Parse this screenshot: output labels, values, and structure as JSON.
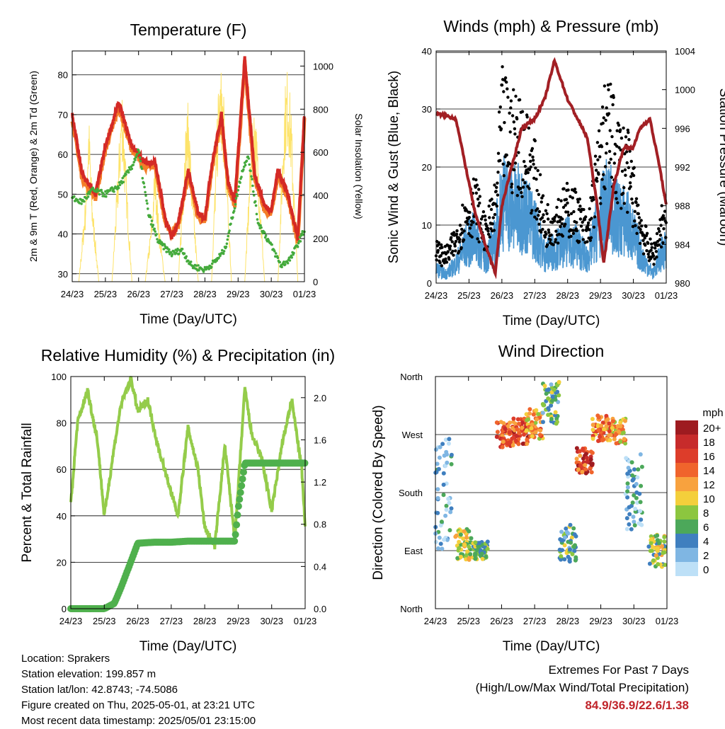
{
  "x_ticks": [
    "24/23",
    "25/23",
    "26/23",
    "27/23",
    "28/23",
    "29/23",
    "30/23",
    "01/23"
  ],
  "info": {
    "location": "Location: Sprakers",
    "elevation": "Station elevation: 199.857 m",
    "latlon": "Station lat/lon: 42.8743; -74.5086",
    "created": "Figure created on Thu, 2025-05-01, at 23:21 UTC",
    "recent": "Most recent data timestamp: 2025/05/01 23:15:00"
  },
  "extremes": {
    "title": "Extremes For Past 7 Days",
    "subtitle": "(High/Low/Max Wind/Total Precipitation)",
    "values": "84.9/36.9/22.6/1.38"
  },
  "colors": {
    "temp2m": "#d42a26",
    "temp9m": "#f47d28",
    "dewpoint": "#44aa3c",
    "solar": "#fde36a",
    "wind": "#4b97d1",
    "gust": "#000000",
    "pressure": "#a21f24",
    "rh": "#94cc4a",
    "rain": "#4fb04d"
  },
  "chart_data": [
    {
      "type": "line",
      "title": "Temperature (F)",
      "xlabel": "Time (Day/UTC)",
      "ylabel": "2m & 9m T (Red, Orange) & 2m Td (Green)",
      "ylabel_right": "Solar Insolation (Yellow)",
      "x_ticks": [
        "24/23",
        "25/23",
        "26/23",
        "27/23",
        "28/23",
        "29/23",
        "30/23",
        "01/23"
      ],
      "y_ticks": [
        30,
        40,
        50,
        60,
        70,
        80
      ],
      "y2_ticks": [
        0,
        200,
        400,
        600,
        800,
        1000
      ],
      "ylim": [
        28,
        86
      ],
      "y2lim": [
        0,
        1070
      ],
      "series": [
        {
          "name": "2m T",
          "color": "#d42a26",
          "x": [
            0,
            0.3,
            0.7,
            1.0,
            1.4,
            1.8,
            2.2,
            2.5,
            2.8,
            3.0,
            3.2,
            3.5,
            3.8,
            4.0,
            4.2,
            4.5,
            4.7,
            4.9,
            5.2,
            5.5,
            5.8,
            6.0,
            6.2,
            6.5,
            6.8,
            7.0
          ],
          "values": [
            70,
            55,
            50,
            62,
            73,
            62,
            58,
            58,
            44,
            39,
            43,
            56,
            45,
            44,
            57,
            70,
            53,
            48,
            84,
            55,
            47,
            46,
            56,
            50,
            39,
            70
          ]
        },
        {
          "name": "9m T",
          "color": "#f47d28",
          "x": [
            0,
            0.3,
            0.7,
            1.0,
            1.4,
            1.8,
            2.2,
            2.5,
            2.8,
            3.0,
            3.2,
            3.5,
            3.8,
            4.0,
            4.2,
            4.5,
            4.7,
            4.9,
            5.2,
            5.5,
            5.8,
            6.0,
            6.2,
            6.5,
            6.8,
            7.0
          ],
          "values": [
            69,
            54,
            49,
            61,
            72,
            61,
            57,
            57,
            43,
            40,
            42,
            55,
            44,
            43,
            56,
            69,
            52,
            47,
            83,
            54,
            46,
            45,
            55,
            49,
            38,
            69
          ]
        },
        {
          "name": "2m Td",
          "color": "#44aa3c",
          "x": [
            0,
            0.3,
            0.6,
            1.0,
            1.4,
            1.8,
            2.0,
            2.3,
            2.6,
            3.0,
            3.3,
            3.6,
            4.0,
            4.3,
            4.6,
            4.9,
            5.1,
            5.3,
            5.6,
            6.0,
            6.3,
            6.6,
            7.0
          ],
          "values": [
            49,
            48,
            51,
            50,
            52,
            57,
            61,
            45,
            38,
            35,
            36,
            32,
            31,
            33,
            36,
            47,
            55,
            60,
            43,
            37,
            32,
            34,
            41
          ]
        },
        {
          "name": "Solar",
          "color": "#fde36a",
          "x": [
            0.2,
            0.4,
            0.5,
            0.6,
            0.8,
            1.2,
            1.4,
            1.5,
            1.6,
            1.8,
            2.2,
            2.4,
            2.5,
            2.6,
            2.8,
            3.2,
            3.4,
            3.5,
            3.6,
            3.8,
            4.2,
            4.4,
            4.5,
            4.6,
            4.8,
            5.2,
            5.4,
            5.5,
            5.6,
            5.8,
            6.2,
            6.4,
            6.5,
            6.6,
            6.8
          ],
          "values": [
            0,
            400,
            800,
            400,
            0,
            0,
            600,
            950,
            600,
            0,
            0,
            300,
            600,
            300,
            0,
            0,
            700,
            850,
            500,
            0,
            0,
            900,
            1000,
            800,
            0,
            0,
            700,
            850,
            600,
            0,
            0,
            900,
            1020,
            800,
            0
          ]
        }
      ]
    },
    {
      "type": "line",
      "title": "Winds (mph) & Pressure (mb)",
      "xlabel": "Time (Day/UTC)",
      "ylabel": "Sonic Wind & Gust (Blue, Black)",
      "ylabel_right": "Station Pressure (Maroon)",
      "x_ticks": [
        "24/23",
        "25/23",
        "26/23",
        "27/23",
        "28/23",
        "29/23",
        "30/23",
        "01/23"
      ],
      "y_ticks": [
        0,
        10,
        20,
        30,
        40
      ],
      "y2_ticks": [
        980,
        984,
        988,
        992,
        996,
        1000,
        1004
      ],
      "ylim": [
        0,
        40
      ],
      "y2lim": [
        980,
        1004
      ],
      "series": [
        {
          "name": "Wind",
          "color": "#4b97d1",
          "x": [
            0,
            0.3,
            0.6,
            0.9,
            1.2,
            1.5,
            1.8,
            2.0,
            2.3,
            2.6,
            3.0,
            3.3,
            3.6,
            4.0,
            4.3,
            4.6,
            4.9,
            5.2,
            5.5,
            5.8,
            6.0,
            6.3,
            6.6,
            6.9,
            7.0
          ],
          "values": [
            3,
            2,
            4,
            8,
            10,
            5,
            9,
            18,
            16,
            16,
            12,
            6,
            7,
            9,
            8,
            5,
            12,
            17,
            14,
            13,
            10,
            5,
            2,
            7,
            8
          ]
        },
        {
          "name": "Gust",
          "color": "#000000",
          "x": [
            0,
            0.3,
            0.6,
            0.9,
            1.2,
            1.5,
            1.8,
            2.0,
            2.3,
            2.6,
            3.0,
            3.3,
            3.6,
            4.0,
            4.3,
            4.6,
            4.9,
            5.2,
            5.5,
            5.8,
            6.0,
            6.3,
            6.6,
            6.9,
            7.0
          ],
          "values": [
            6,
            5,
            8,
            13,
            15,
            9,
            14,
            30,
            27,
            27,
            20,
            11,
            12,
            14,
            13,
            9,
            20,
            30,
            24,
            22,
            17,
            9,
            5,
            12,
            13
          ]
        },
        {
          "name": "Pressure",
          "color": "#a21f24",
          "x": [
            0,
            0.3,
            0.6,
            0.9,
            1.2,
            1.5,
            1.8,
            2.0,
            2.3,
            2.6,
            3.0,
            3.3,
            3.6,
            4.0,
            4.3,
            4.6,
            4.9,
            5.1,
            5.4,
            5.7,
            6.0,
            6.2,
            6.5,
            6.8,
            7.0
          ],
          "values": [
            997.5,
            997.3,
            997,
            992,
            987,
            984,
            981,
            988,
            992,
            996,
            997,
            999,
            1003,
            999,
            997,
            995,
            988,
            982,
            990,
            994,
            994,
            996,
            997,
            992,
            988
          ]
        }
      ]
    },
    {
      "type": "line",
      "title": "Relative Humidity (%) & Precipitation (in)",
      "xlabel": "Time (Day/UTC)",
      "ylabel": "Percent & Total Rainfall",
      "x_ticks": [
        "24/23",
        "25/23",
        "26/23",
        "27/23",
        "28/23",
        "29/23",
        "30/23",
        "01/23"
      ],
      "y_ticks": [
        0,
        20,
        40,
        60,
        80,
        100
      ],
      "y2_ticks": [
        "0.0",
        "0.4",
        "0.8",
        "1.2",
        "1.6",
        "2.0"
      ],
      "ylim": [
        0,
        100
      ],
      "y2lim": [
        0,
        2.2
      ],
      "series": [
        {
          "name": "RH",
          "color": "#94cc4a",
          "x": [
            0,
            0.2,
            0.5,
            0.8,
            1.0,
            1.3,
            1.5,
            1.8,
            2.0,
            2.3,
            2.6,
            2.9,
            3.2,
            3.5,
            3.8,
            4.0,
            4.3,
            4.6,
            4.9,
            5.2,
            5.4,
            5.7,
            6.0,
            6.3,
            6.6,
            6.9,
            7.0
          ],
          "values": [
            45,
            80,
            94,
            72,
            40,
            70,
            88,
            99,
            85,
            90,
            70,
            55,
            40,
            78,
            60,
            35,
            27,
            70,
            30,
            95,
            75,
            65,
            42,
            70,
            90,
            60,
            35
          ]
        },
        {
          "name": "Rainfall",
          "color": "#4fb04d",
          "x": [
            0,
            0.5,
            1.0,
            1.3,
            1.5,
            1.8,
            2.0,
            2.5,
            3.0,
            3.5,
            4.0,
            4.5,
            4.9,
            5.0,
            5.2,
            5.5,
            6.0,
            6.5,
            7.0
          ],
          "values": [
            0,
            0,
            0,
            0.05,
            0.2,
            0.45,
            0.62,
            0.63,
            0.63,
            0.64,
            0.64,
            0.64,
            0.64,
            0.95,
            1.38,
            1.38,
            1.38,
            1.38,
            1.38
          ]
        }
      ]
    },
    {
      "type": "scatter",
      "title": "Wind Direction",
      "xlabel": "Time (Day/UTC)",
      "ylabel": "Direction (Colored By Speed)",
      "x_ticks": [
        "24/23",
        "25/23",
        "26/23",
        "27/23",
        "28/23",
        "29/23",
        "30/23",
        "01/23"
      ],
      "y_ticks": [
        "North",
        "East",
        "South",
        "West",
        "North"
      ],
      "legend_title": "mph",
      "legend_labels": [
        "20+",
        "18",
        "16",
        "14",
        "12",
        "10",
        "8",
        "6",
        "4",
        "2",
        "0"
      ],
      "legend_colors": [
        "#9e1b20",
        "#c72b2b",
        "#dd3d2a",
        "#f0642c",
        "#f8a23e",
        "#f4cf3b",
        "#8cc63f",
        "#4ca85a",
        "#3f7fbf",
        "#7fb6e3",
        "#bde0f7"
      ],
      "legend_placement": "right",
      "clusters": [
        {
          "x": 0.25,
          "dir": 180,
          "spread": 90,
          "speed": 3
        },
        {
          "x": 0.85,
          "dir": 100,
          "spread": 25,
          "speed": 9
        },
        {
          "x": 1.35,
          "dir": 90,
          "spread": 15,
          "speed": 7
        },
        {
          "x": 2.1,
          "dir": 270,
          "spread": 20,
          "speed": 15
        },
        {
          "x": 2.6,
          "dir": 275,
          "spread": 20,
          "speed": 16
        },
        {
          "x": 3.0,
          "dir": 285,
          "spread": 25,
          "speed": 12
        },
        {
          "x": 3.5,
          "dir": 320,
          "spread": 35,
          "speed": 6
        },
        {
          "x": 4.0,
          "dir": 100,
          "spread": 30,
          "speed": 6
        },
        {
          "x": 4.5,
          "dir": 230,
          "spread": 20,
          "speed": 16
        },
        {
          "x": 5.0,
          "dir": 280,
          "spread": 20,
          "speed": 13
        },
        {
          "x": 5.5,
          "dir": 275,
          "spread": 20,
          "speed": 12
        },
        {
          "x": 6.0,
          "dir": 180,
          "spread": 60,
          "speed": 3
        },
        {
          "x": 6.7,
          "dir": 90,
          "spread": 25,
          "speed": 8
        }
      ]
    }
  ]
}
